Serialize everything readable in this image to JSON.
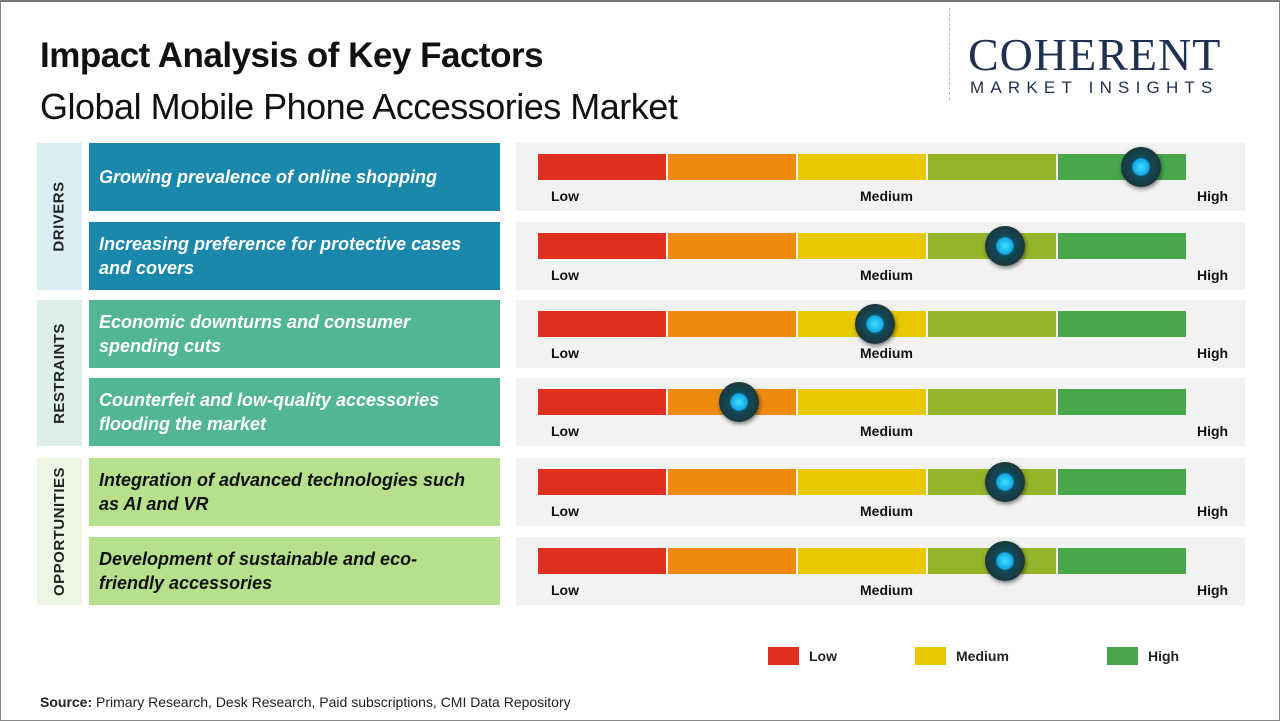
{
  "header": {
    "title": "Impact Analysis of Key Factors",
    "subtitle": "Global Mobile Phone Accessories Market"
  },
  "logo": {
    "line1": "COHERENT",
    "line2": "MARKET INSIGHTS"
  },
  "colors": {
    "drivers": "#1a88ad",
    "restraints": "#52b596",
    "opportunities": "#b6e08c",
    "low": "#e03020",
    "lowmid": "#ee8a10",
    "medium": "#e8c800",
    "midhigh": "#96b42a",
    "high": "#46a84a"
  },
  "categories": [
    {
      "label": "DRIVERS"
    },
    {
      "label": "RESTRAINTS"
    },
    {
      "label": "OPPORTUNITIES"
    }
  ],
  "scale_labels": {
    "low": "Low",
    "medium": "Medium",
    "high": "High"
  },
  "chart_data": {
    "type": "gauge",
    "title": "Impact Analysis of Key Factors",
    "scale": [
      "Low",
      "Medium",
      "High"
    ],
    "range": [
      0,
      1
    ],
    "factors": [
      {
        "category": "Drivers",
        "label": "Growing prevalence of online shopping",
        "impact": 0.93
      },
      {
        "category": "Drivers",
        "label": "Increasing preference for protective cases and covers",
        "impact": 0.72
      },
      {
        "category": "Restraints",
        "label": "Economic downturns and consumer spending cuts",
        "impact": 0.52
      },
      {
        "category": "Restraints",
        "label": "Counterfeit and low-quality accessories flooding the market",
        "impact": 0.31
      },
      {
        "category": "Opportunities",
        "label": "Integration of advanced technologies such as AI and VR",
        "impact": 0.72
      },
      {
        "category": "Opportunities",
        "label": "Development of sustainable and eco-friendly accessories",
        "impact": 0.72
      }
    ],
    "legend": [
      "Low",
      "Medium",
      "High"
    ]
  },
  "source": {
    "label": "Source:",
    "text": " Primary Research, Desk Research, Paid subscriptions, CMI Data Repository"
  }
}
